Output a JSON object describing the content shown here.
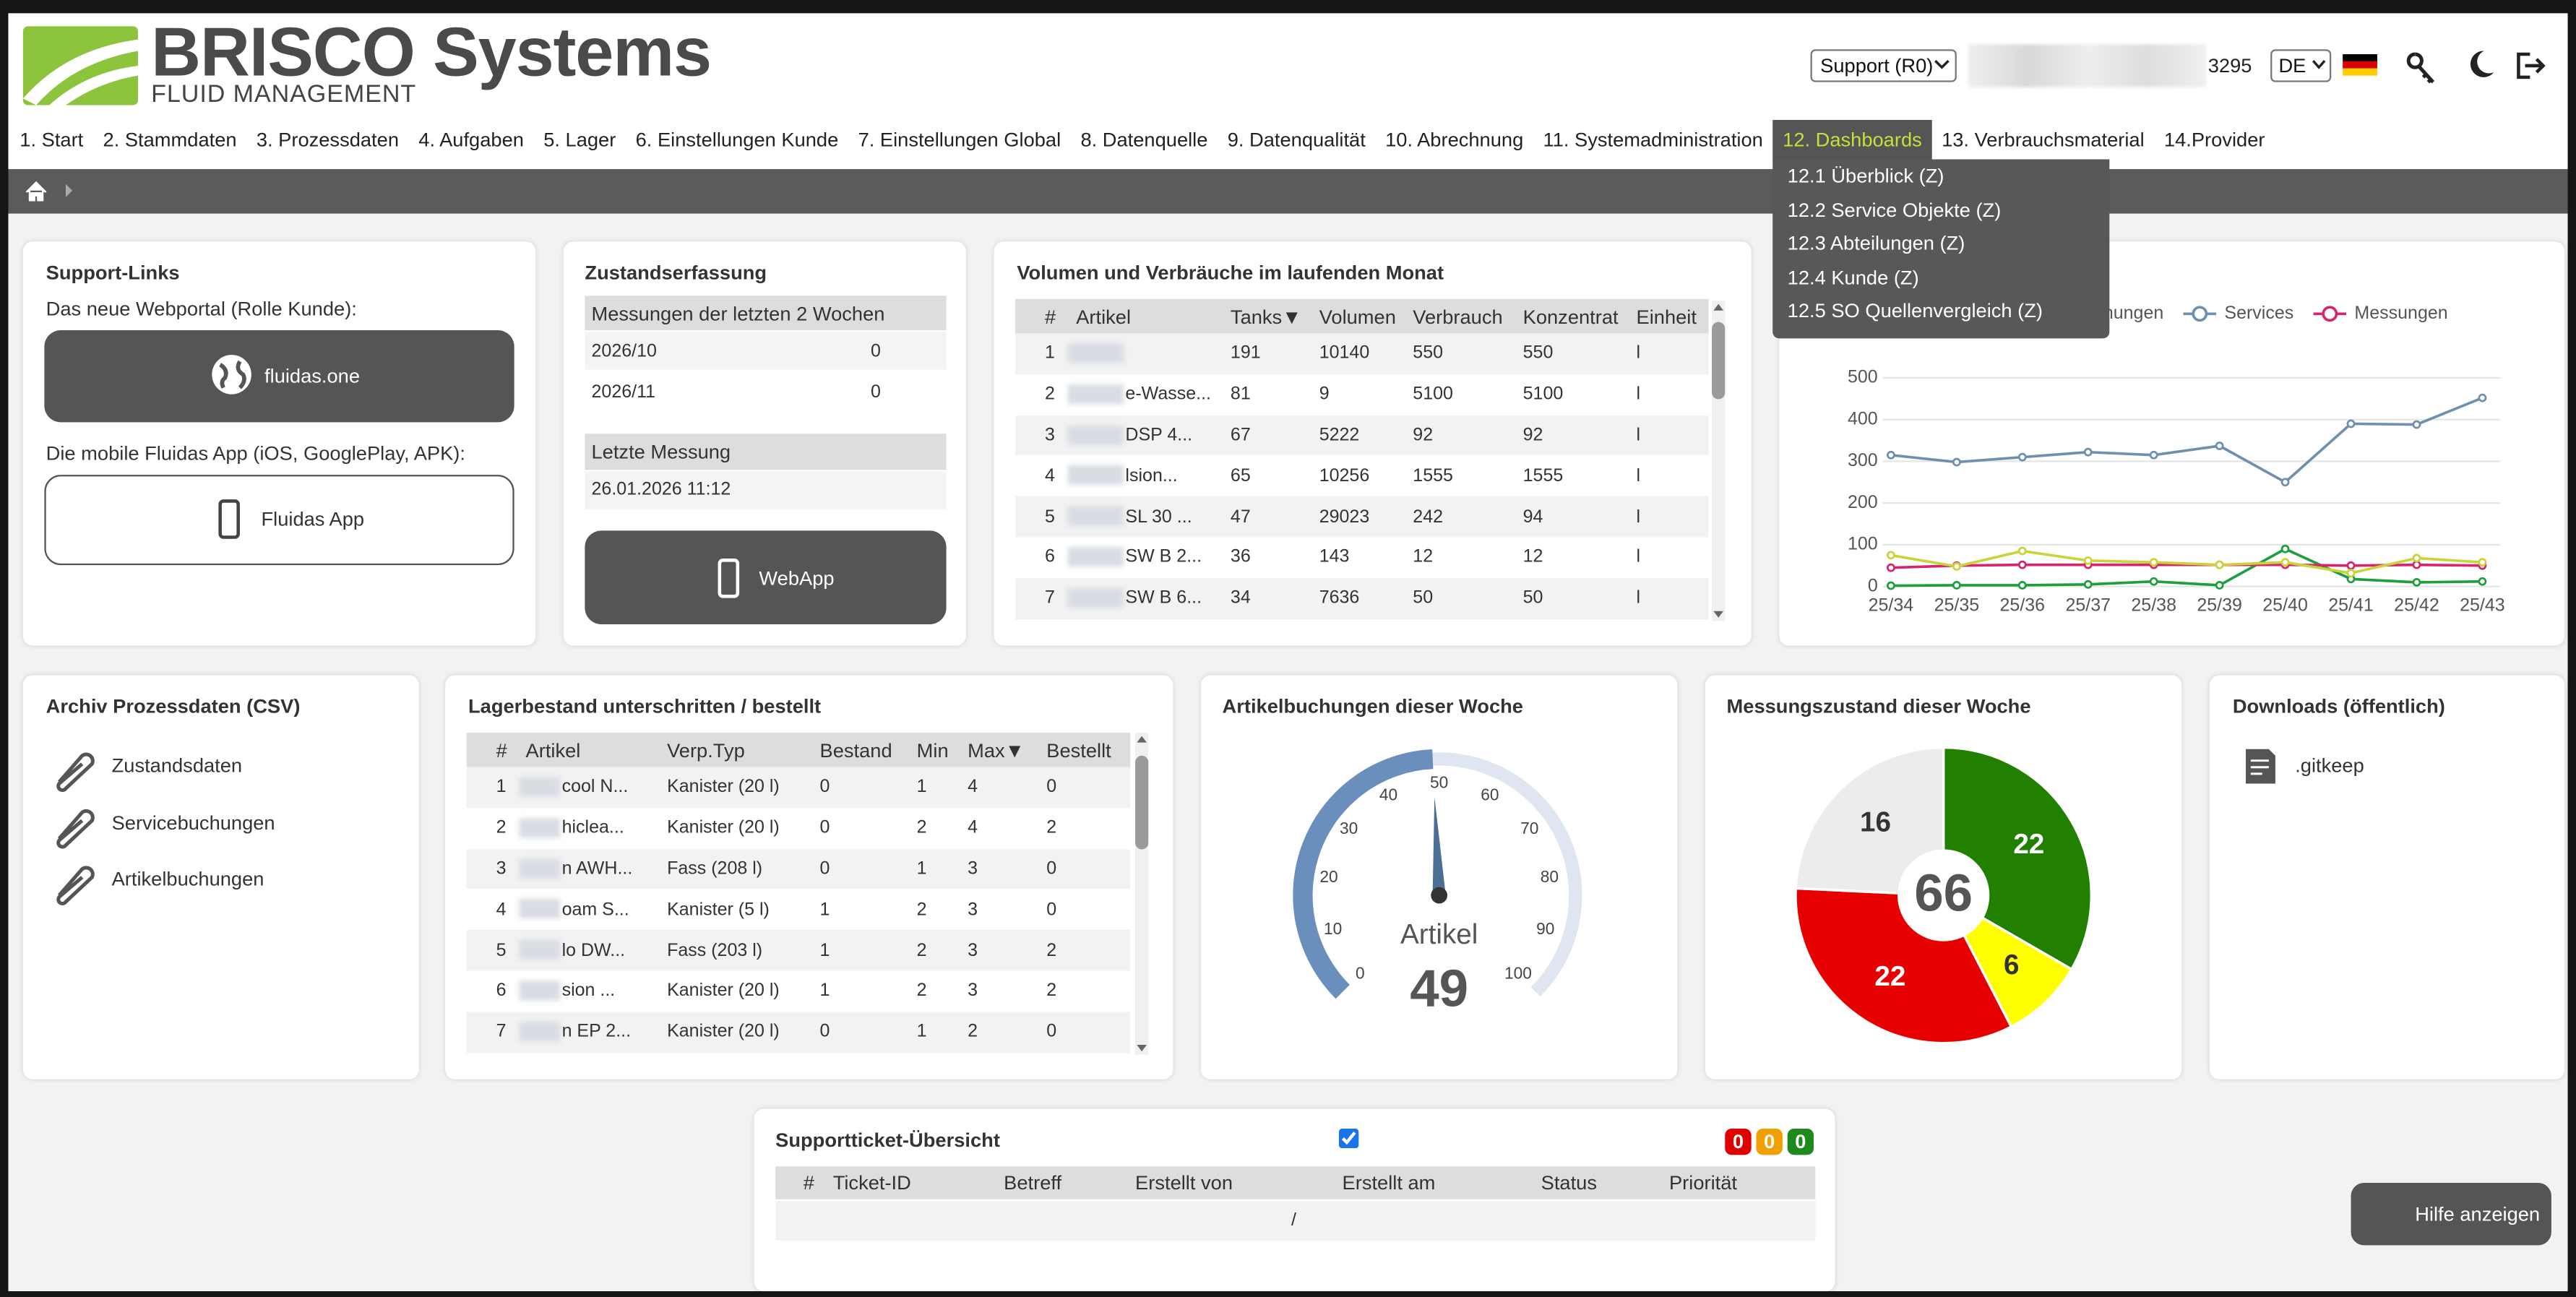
{
  "header": {
    "brand": "BRISCO Systems",
    "tagline": "FLUID MANAGEMENT",
    "role": "Support (R0)",
    "user_id": "3295",
    "language": "DE"
  },
  "nav": {
    "items": [
      "1. Start",
      "2. Stammdaten",
      "3. Prozessdaten",
      "4. Aufgaben",
      "5. Lager",
      "6. Einstellungen Kunde",
      "7. Einstellungen Global",
      "8. Datenquelle",
      "9. Datenqualität",
      "10. Abrechnung",
      "11. Systemadministration",
      "12. Dashboards",
      "13. Verbrauchsmaterial",
      "14.Provider"
    ],
    "active": 11,
    "submenu": [
      "12.1 Überblick (Z)",
      "12.2 Service Objekte (Z)",
      "12.3 Abteilungen (Z)",
      "12.4 Kunde (Z)",
      "12.5 SO Quellenvergleich (Z)"
    ]
  },
  "support_links": {
    "title": "Support-Links",
    "webportal_text": "Das neue Webportal (Rolle Kunde):",
    "webportal_button": "fluidas.one",
    "app_text": "Die mobile Fluidas App (iOS, GooglePlay, APK):",
    "app_button": "Fluidas App"
  },
  "zustand": {
    "title": "Zustandserfassung",
    "section": "Messungen der letzten 2 Wochen",
    "rows": [
      [
        "2026/10",
        0
      ],
      [
        "2026/11",
        0
      ]
    ],
    "last_title": "Letzte Messung",
    "last_value": "26.01.2026 11:12",
    "button": "WebApp"
  },
  "volumen": {
    "title": "Volumen und Verbräuche im laufenden Monat",
    "columns": [
      "#",
      "Artikel",
      "Tanks▼",
      "Volumen",
      "Verbrauch",
      "Konzentrat",
      "Einheit"
    ],
    "rows": [
      [
        1,
        null,
        191,
        10140,
        550,
        550,
        "l"
      ],
      [
        2,
        "e-Wasse...",
        81,
        9,
        5100,
        5100,
        "l"
      ],
      [
        3,
        "DSP 4...",
        67,
        5222,
        92,
        92,
        "l"
      ],
      [
        4,
        "lsion...",
        65,
        10256,
        1555,
        1555,
        "l"
      ],
      [
        5,
        "SL 30 ...",
        47,
        29023,
        242,
        94,
        "l"
      ],
      [
        6,
        "SW B 2...",
        36,
        143,
        12,
        12,
        "l"
      ],
      [
        7,
        "SW B 6...",
        34,
        7636,
        50,
        50,
        "l"
      ]
    ]
  },
  "archiv": {
    "title": "Archiv Prozessdaten (CSV)",
    "links": [
      "Zustandsdaten",
      "Servicebuchungen",
      "Artikelbuchungen"
    ]
  },
  "lager": {
    "title": "Lagerbestand unterschritten / bestellt",
    "columns": [
      "#",
      "Artikel",
      "Verp.Typ",
      "Bestand",
      "Min",
      "Max▼",
      "Bestellt"
    ],
    "rows": [
      [
        1,
        "cool N...",
        "Kanister (20 l)",
        0,
        1,
        4,
        0
      ],
      [
        2,
        "hiclea...",
        "Kanister (20 l)",
        0,
        2,
        4,
        2
      ],
      [
        3,
        "n AWH...",
        "Fass (208 l)",
        0,
        1,
        3,
        0
      ],
      [
        4,
        "oam S...",
        "Kanister (5 l)",
        1,
        2,
        3,
        0
      ],
      [
        5,
        "lo DW...",
        "Fass (203 l)",
        1,
        2,
        3,
        2
      ],
      [
        6,
        "sion ...",
        "Kanister (20 l)",
        1,
        2,
        3,
        2
      ],
      [
        7,
        "n EP 2...",
        "Kanister (20 l)",
        0,
        1,
        2,
        0
      ]
    ]
  },
  "downloads": {
    "title": "Downloads (öffentlich)",
    "files": [
      ".gitkeep"
    ]
  },
  "tickets": {
    "title": "Supportticket-Übersicht",
    "checked": true,
    "counters": [
      0,
      0,
      0
    ],
    "columns": [
      "#",
      "Ticket-ID",
      "Betreff",
      "Erstellt von",
      "Erstellt am",
      "Status",
      "Priorität"
    ],
    "empty": "/"
  },
  "help": "Hilfe anzeigen",
  "chart_data": [
    {
      "type": "line",
      "x": [
        "25/34",
        "25/35",
        "25/36",
        "25/37",
        "25/38",
        "25/39",
        "25/40",
        "25/41",
        "25/42",
        "25/43"
      ],
      "ylim": [
        0,
        500
      ],
      "yticks": [
        0,
        100,
        200,
        300,
        400,
        500
      ],
      "grid": true,
      "series": [
        {
          "name": "erbuchungen",
          "color": "#1e9e3c",
          "values": [
            2,
            3,
            3,
            5,
            12,
            3,
            90,
            18,
            10,
            12
          ]
        },
        {
          "name": "Services",
          "color": "#6e8fb0",
          "values": [
            315,
            298,
            310,
            322,
            315,
            337,
            250,
            390,
            388,
            452
          ]
        },
        {
          "name": "Messungen",
          "color": "#d6246e",
          "values": [
            45,
            50,
            52,
            52,
            52,
            52,
            52,
            50,
            52,
            50
          ]
        },
        {
          "color": "#c9d43a",
          "values": [
            75,
            48,
            85,
            62,
            58,
            52,
            58,
            32,
            68,
            58
          ]
        }
      ]
    },
    {
      "type": "gauge",
      "title": "Artikelbuchungen dieser Woche",
      "label": "Artikel",
      "value": 49,
      "ylim": [
        0,
        100
      ],
      "yticks": [
        0,
        10,
        20,
        30,
        40,
        50,
        60,
        70,
        80,
        90,
        100
      ],
      "color": "#6b8fbd"
    },
    {
      "type": "pie",
      "title": "Messungszustand dieser Woche",
      "values": [
        22,
        6,
        22,
        16
      ],
      "colors": [
        "#218000",
        "#ffff00",
        "#e60000",
        "#ececec"
      ],
      "total": 66
    }
  ]
}
